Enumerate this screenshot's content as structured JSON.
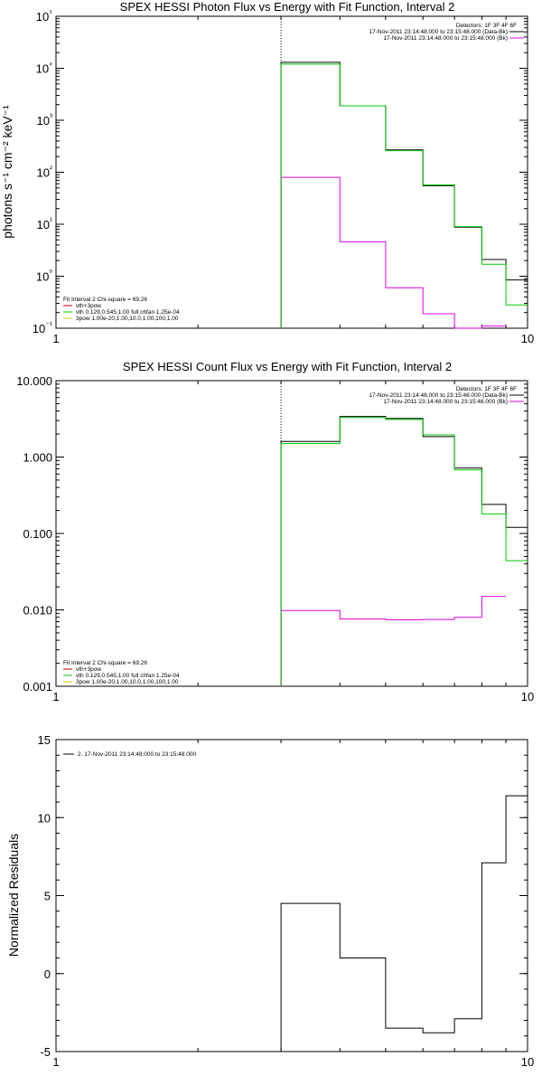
{
  "colors": {
    "observed": "#000000",
    "fit_total": "#00c800",
    "background": "#e000e0",
    "component1": "#c00000",
    "component2": "#d7c800"
  },
  "chart_data": [
    {
      "type": "line",
      "title": "SPEX HESSI Photon Flux vs Energy with Fit Function, Interval 2",
      "xlabel": "",
      "ylabel": "photons s⁻¹ cm⁻² keV⁻¹",
      "xlim": [
        1,
        10
      ],
      "xscale": "log",
      "ylim": [
        0.1,
        100000
      ],
      "yscale": "log",
      "xtick_labels": [
        "1",
        "10"
      ],
      "ytick_labels": [
        "10⁻¹",
        "10⁰",
        "10¹",
        "10²",
        "10³",
        "10⁴",
        "10⁵"
      ],
      "vline_x": 3,
      "bin_edges": [
        3,
        4,
        5,
        6,
        7,
        8,
        9,
        10
      ],
      "series": [
        {
          "name": "17-Nov-2011 23:14:48.000 to 23:15:48.000 (Data-Bk)",
          "color": "#000000",
          "values": [
            13000,
            1900,
            270,
            55,
            8.8,
            2.1,
            0.85
          ]
        },
        {
          "name": "17-Nov-2011 23:14:48.000 to 23:15:48.000 (Bk)",
          "color": "#e000e0",
          "values": [
            80,
            4.6,
            0.6,
            0.19,
            0.08,
            0.11,
            null
          ]
        },
        {
          "name": "vth+3pow",
          "color": "#00c800",
          "values": [
            12000,
            1900,
            260,
            57,
            9.0,
            1.7,
            0.28
          ]
        }
      ],
      "legend": {
        "detectors": "Detectors: 1F 3F 4F 6F",
        "fit_header": "Fit Interval 2   Chi-square = 69.26",
        "entries": [
          {
            "text": "vth+3pow",
            "color": "#c00000"
          },
          {
            "text": "vth 0.129,0.545,1.00  full chfan 1.25e-04",
            "color": "#00c800"
          },
          {
            "text": "3pow 1.00e-20,1.00,10.0,1.00,100,1.00",
            "color": "#d7c800"
          }
        ]
      }
    },
    {
      "type": "line",
      "title": "SPEX HESSI Count Flux vs Energy with Fit Function, Interval 2",
      "xlabel": "",
      "ylabel": "",
      "xlim": [
        1,
        10
      ],
      "xscale": "log",
      "ylim": [
        0.001,
        10
      ],
      "yscale": "log",
      "xtick_labels": [
        "1",
        "10"
      ],
      "ytick_labels": [
        "0.001",
        "0.010",
        "0.100",
        "1.000",
        "10.000"
      ],
      "vline_x": 3,
      "bin_edges": [
        3,
        4,
        5,
        6,
        7,
        8,
        9,
        10
      ],
      "series": [
        {
          "name": "17-Nov-2011 23:14:48.000 to 23:15:48.000 (Data-Bk)",
          "color": "#000000",
          "values": [
            1.6,
            3.4,
            3.2,
            1.85,
            0.72,
            0.24,
            0.12
          ]
        },
        {
          "name": "17-Nov-2011 23:14:48.000 to 23:15:48.000 (Bk)",
          "color": "#e000e0",
          "values": [
            0.0098,
            0.0076,
            0.0074,
            0.0075,
            0.008,
            0.015,
            null
          ]
        },
        {
          "name": "vth+3pow",
          "color": "#00c800",
          "values": [
            1.5,
            3.3,
            3.1,
            1.95,
            0.68,
            0.18,
            0.044
          ]
        }
      ],
      "legend": {
        "detectors": "Detectors: 1F 3F 4F 6F",
        "fit_header": "Fit Interval 2   Chi-square = 69.26",
        "entries": [
          {
            "text": "vth+3pow",
            "color": "#c00000"
          },
          {
            "text": "vth 0.129,0.545,1.00  full chfan 1.25e-04",
            "color": "#00c800"
          },
          {
            "text": "3pow 1.00e-20,1.00,10.0,1.00,100,1.00",
            "color": "#d7c800"
          }
        ]
      }
    },
    {
      "type": "line",
      "title": "",
      "xlabel": "",
      "ylabel": "Normalized Residuals",
      "xlim": [
        1,
        10
      ],
      "xscale": "log",
      "ylim": [
        -5,
        15
      ],
      "yscale": "linear",
      "xtick_labels": [
        "1",
        "10"
      ],
      "ytick_labels": [
        "-5",
        "0",
        "5",
        "10",
        "15"
      ],
      "bin_edges": [
        3,
        4,
        5,
        6,
        7,
        8,
        9,
        10
      ],
      "series": [
        {
          "name": "2. 17-Nov-2011 23:14:48.000 to 23:15:48.000",
          "color": "#000000",
          "values": [
            4.5,
            1.0,
            -3.5,
            -3.8,
            -2.9,
            7.1,
            11.4
          ]
        }
      ]
    }
  ]
}
